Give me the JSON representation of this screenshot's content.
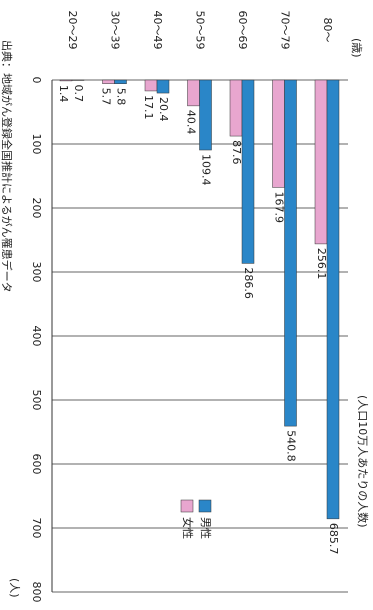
{
  "chart_data": {
    "type": "bar",
    "orientation": "rotated",
    "categories_unit": "(歳)",
    "value_unit": "(人)",
    "subtitle": "(人口10万人あたりの人数)",
    "source": "出典：地域がん登録全国推計によるがん罹患データ",
    "categories": [
      "80〜",
      "70〜79",
      "60〜69",
      "50〜59",
      "40〜49",
      "30〜39",
      "20〜29"
    ],
    "series": [
      {
        "name": "男性",
        "color": "#2a86c8",
        "values": [
          685.7,
          540.8,
          286.6,
          109.4,
          20.4,
          5.8,
          0.7
        ]
      },
      {
        "name": "女性",
        "color": "#e8a6cf",
        "values": [
          256.1,
          167.9,
          87.6,
          40.4,
          17.1,
          5.7,
          1.4
        ]
      }
    ],
    "ylim": [
      0,
      800
    ],
    "yticks": [
      0,
      100,
      200,
      300,
      400,
      500,
      600,
      700,
      800
    ],
    "grid": true
  }
}
